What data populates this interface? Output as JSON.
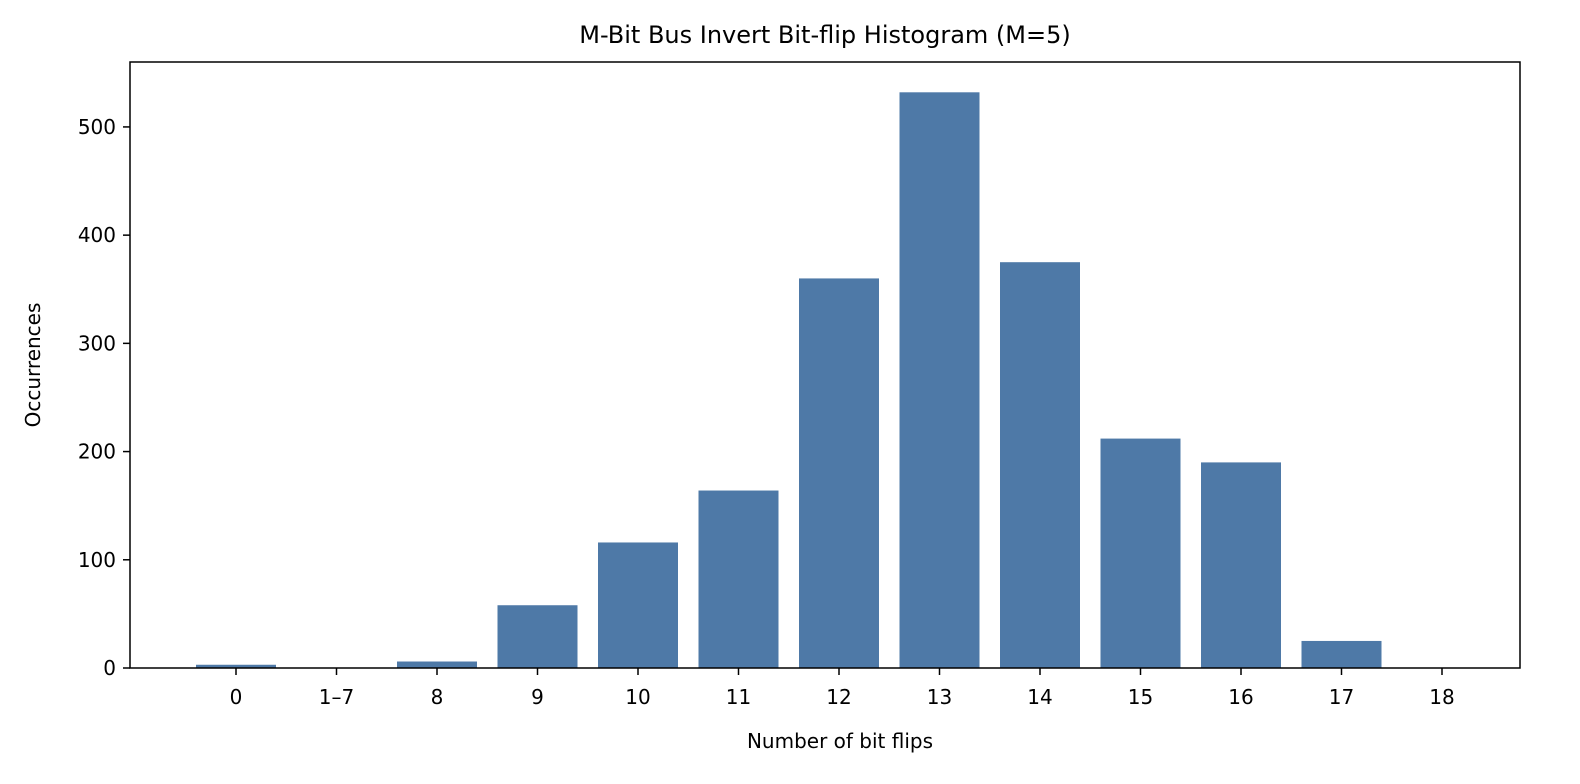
{
  "chart_data": {
    "type": "bar",
    "title": "M-Bit Bus Invert Bit-flip Histogram (M=5)",
    "xlabel": "Number of bit flips",
    "ylabel": "Occurrences",
    "categories": [
      "0",
      "1–7",
      "8",
      "9",
      "10",
      "11",
      "12",
      "13",
      "14",
      "15",
      "16",
      "17",
      "18"
    ],
    "values": [
      3,
      0,
      6,
      58,
      116,
      164,
      360,
      532,
      375,
      212,
      190,
      25,
      0
    ],
    "ylim": [
      0,
      560
    ],
    "yticks": [
      0,
      100,
      200,
      300,
      400,
      500
    ],
    "grid": false,
    "bar_color": "#4e79a7"
  }
}
